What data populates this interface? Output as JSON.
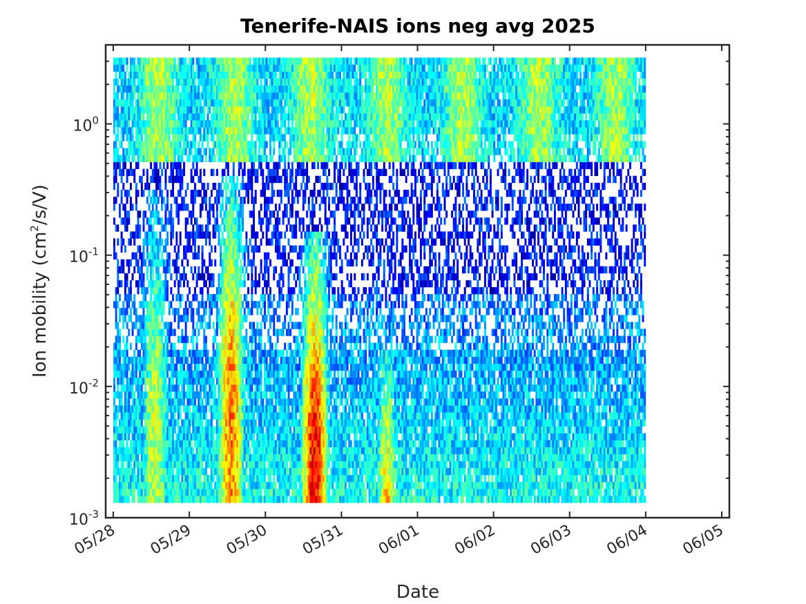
{
  "chart_data": {
    "type": "heatmap",
    "title": "Tenerife-NAIS ions neg avg 2025",
    "xlabel": "Date",
    "ylabel": {
      "prefix": "Ion mobility (cm",
      "superscript": "2",
      "suffix": "/s/V)"
    },
    "x_tick_labels": [
      "05/28",
      "05/29",
      "05/30",
      "05/31",
      "06/01",
      "06/02",
      "06/03",
      "06/04",
      "06/05"
    ],
    "x_range_days": [
      -0.1,
      8.1
    ],
    "data_x_range_days": [
      0,
      7
    ],
    "y_scale": "log",
    "y_range": [
      0.001,
      4
    ],
    "data_y_range": [
      0.0013,
      3.2
    ],
    "y_ticks": [
      {
        "value": 0.001,
        "base": "10",
        "exp": "-3"
      },
      {
        "value": 0.01,
        "base": "10",
        "exp": "-2"
      },
      {
        "value": 0.1,
        "base": "10",
        "exp": "-1"
      },
      {
        "value": 1,
        "base": "10",
        "exp": "0"
      }
    ],
    "colormap": "jet",
    "colormap_stops": [
      "#00008f",
      "#0000ff",
      "#00ffff",
      "#ffff00",
      "#ff0000",
      "#800000"
    ],
    "missing_color": "#ffffff",
    "concentration_bands": [
      {
        "day_center": 0.55,
        "width": 0.22,
        "peak_level": 0.55,
        "upper_mobility": 0.3
      },
      {
        "day_center": 1.55,
        "width": 0.2,
        "peak_level": 0.75,
        "upper_mobility": 0.4
      },
      {
        "day_center": 2.65,
        "width": 0.2,
        "peak_level": 0.88,
        "upper_mobility": 0.15
      },
      {
        "day_center": 3.6,
        "width": 0.17,
        "peak_level": 0.78,
        "upper_mobility": 0.02
      },
      {
        "day_center": 4.65,
        "width": 0.12,
        "peak_level": 0.5,
        "upper_mobility": 0.01
      },
      {
        "day_center": 5.7,
        "width": 0.2,
        "peak_level": 0.5,
        "upper_mobility": 0.01
      }
    ],
    "grid": false
  }
}
